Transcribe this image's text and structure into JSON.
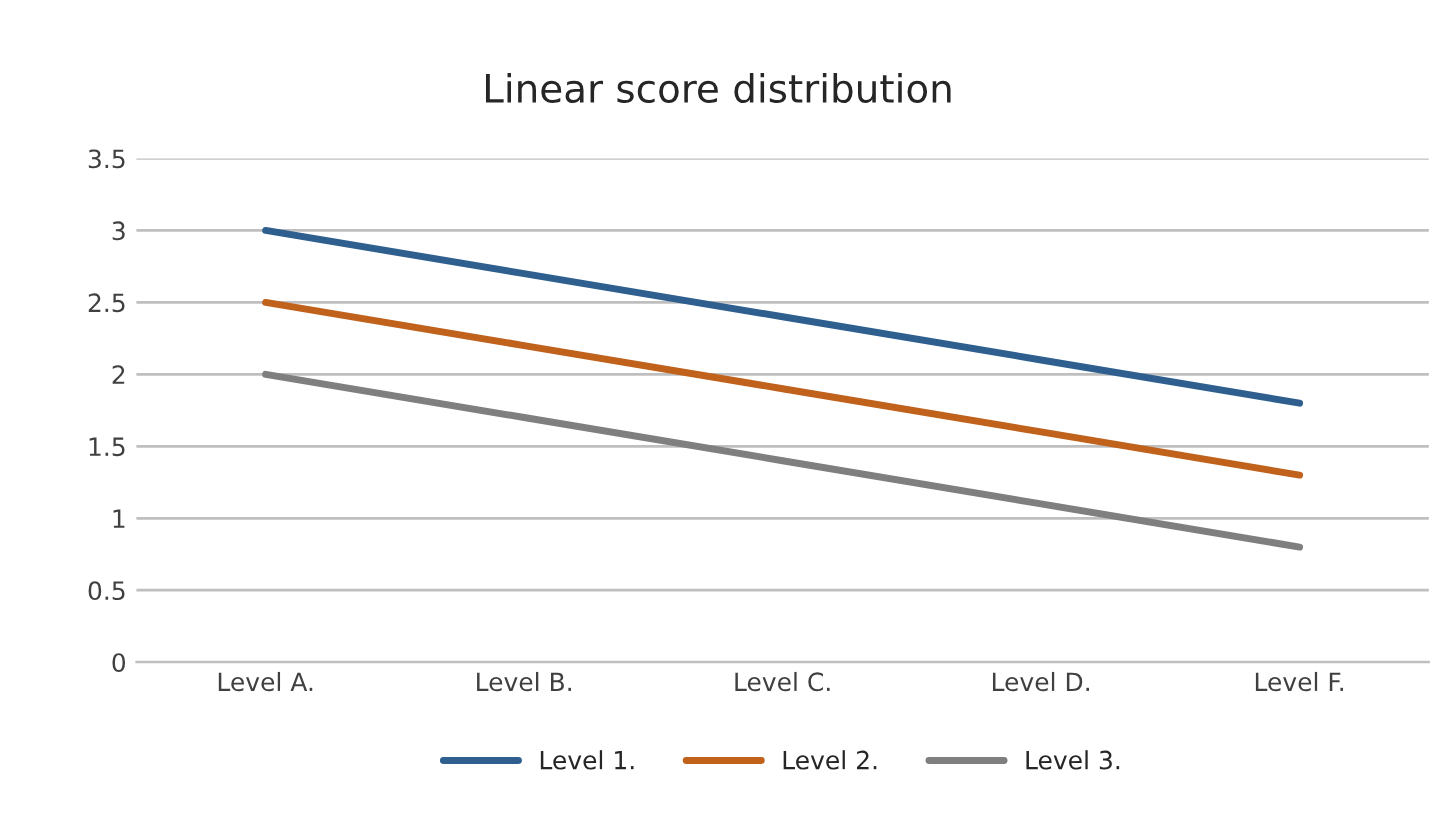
{
  "chart_data": {
    "type": "line",
    "title": "Linear score distribution",
    "categories": [
      "Level A.",
      "Level B.",
      "Level C.",
      "Level D.",
      "Level F."
    ],
    "series": [
      {
        "name": "Level 1.",
        "color": "#2e5f8f",
        "values": [
          3.0,
          2.7,
          2.4,
          2.1,
          1.8
        ]
      },
      {
        "name": "Level 2.",
        "color": "#c0611c",
        "values": [
          2.5,
          2.2,
          1.9,
          1.6,
          1.3
        ]
      },
      {
        "name": "Level 3.",
        "color": "#7f7f7f",
        "values": [
          2.0,
          1.7,
          1.4,
          1.1,
          0.8
        ]
      }
    ],
    "ylim": [
      0,
      3.5
    ],
    "yticks": [
      0,
      0.5,
      1,
      1.5,
      2,
      2.5,
      3,
      3.5
    ],
    "grid": "y",
    "legend": "bottom",
    "marker": "none",
    "line_style": "solid"
  }
}
